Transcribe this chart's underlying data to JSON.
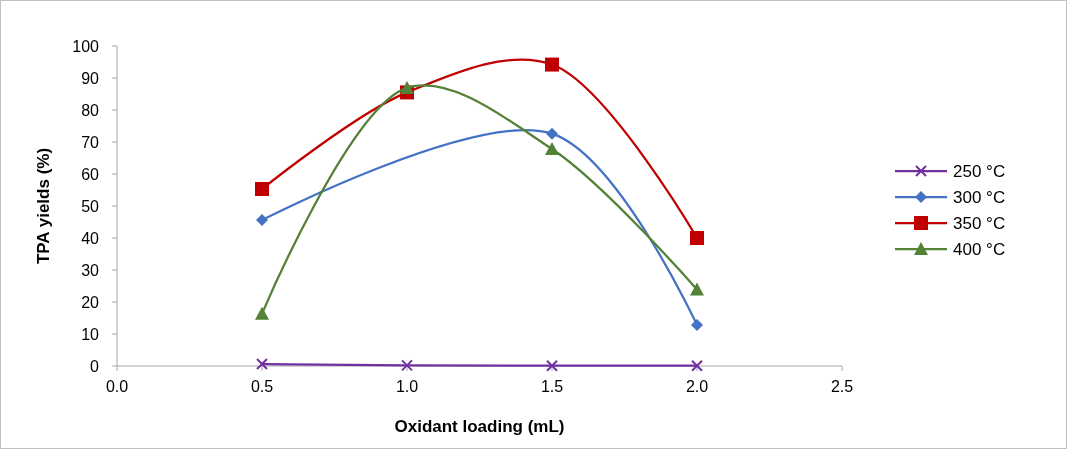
{
  "chart_data": {
    "type": "line",
    "xlabel": "Oxidant loading (mL)",
    "ylabel": "TPA yields (%)",
    "x": [
      0.5,
      1.0,
      1.5,
      2.0
    ],
    "series": [
      {
        "name": "250 °C",
        "color": "#7030a0",
        "marker": "cross",
        "values": [
          0.6,
          0.2,
          0.1,
          0.1
        ]
      },
      {
        "name": "300 °C",
        "color": "#4472c4",
        "marker": "diamond",
        "values": [
          45.6,
          null,
          72.6,
          12.8
        ]
      },
      {
        "name": "350 °C",
        "color": "#c00000",
        "marker": "square",
        "values": [
          55.3,
          85.5,
          94.2,
          40
        ]
      },
      {
        "name": "400 °C",
        "color": "#538135",
        "marker": "triangle",
        "values": [
          16.3,
          86.9,
          67.8,
          23.9
        ]
      }
    ],
    "xlim": [
      0,
      2.5
    ],
    "xticks": [
      {
        "value": 0,
        "label": "0.0"
      },
      {
        "value": 0.5,
        "label": "0.5"
      },
      {
        "value": 1,
        "label": "1.0"
      },
      {
        "value": 1.5,
        "label": "1.5"
      },
      {
        "value": 2,
        "label": "2.0"
      },
      {
        "value": 2.5,
        "label": "2.5"
      }
    ],
    "ylim": [
      0,
      100
    ],
    "yticks": [
      0,
      10,
      20,
      30,
      40,
      50,
      60,
      70,
      80,
      90,
      100
    ],
    "legend": "right",
    "grid": false,
    "line_style": "solid"
  }
}
